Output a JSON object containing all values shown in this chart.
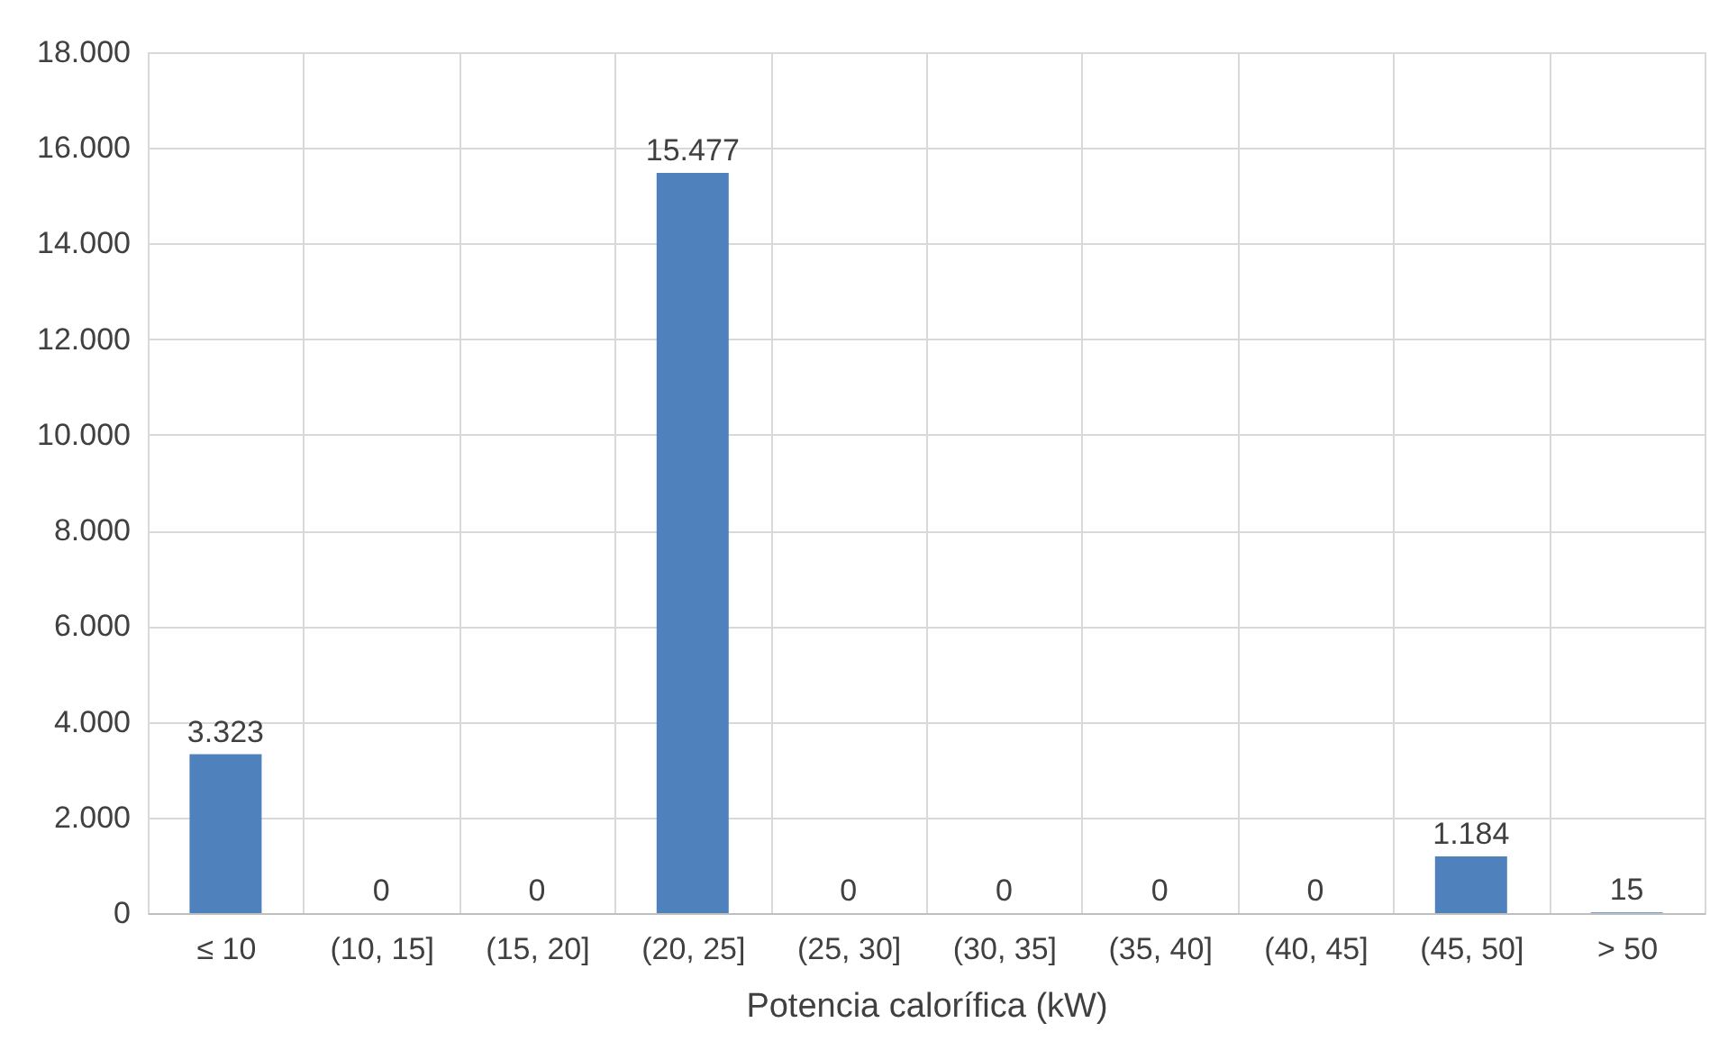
{
  "chart_data": {
    "type": "bar",
    "xlabel": "Potencia calorífica (kW)",
    "categories": [
      "≤ 10",
      "(10, 15]",
      "(15, 20]",
      "(20, 25]",
      "(25, 30]",
      "(30, 35]",
      "(35, 40]",
      "(40, 45]",
      "(45, 50]",
      "> 50"
    ],
    "values": [
      3323,
      0,
      0,
      15477,
      0,
      0,
      0,
      0,
      1184,
      15
    ],
    "value_labels": [
      "3.323",
      "0",
      "0",
      "15.477",
      "0",
      "0",
      "0",
      "0",
      "1.184",
      "15"
    ],
    "color": "#4f81bd",
    "ylim": [
      0,
      18000
    ],
    "yticks": [
      0,
      {
        "value": 2000,
        "label": "2.000"
      },
      {
        "value": 4000,
        "label": "4.000"
      },
      {
        "value": 6000,
        "label": "6.000"
      },
      {
        "value": 8000,
        "label": "8.000"
      },
      {
        "value": 10000,
        "label": "10.000"
      },
      {
        "value": 12000,
        "label": "12.000"
      },
      {
        "value": 14000,
        "label": "14.000"
      },
      {
        "value": 16000,
        "label": "16.000"
      },
      {
        "value": 18000,
        "label": "18.000"
      }
    ],
    "grid": true
  }
}
